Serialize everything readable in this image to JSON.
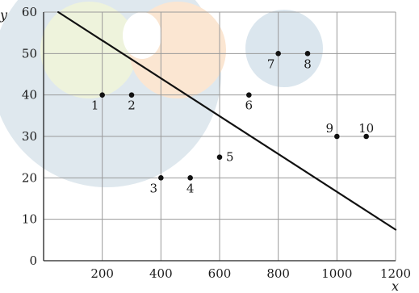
{
  "chart_data": {
    "type": "scatter",
    "title": "",
    "xlabel": "x",
    "ylabel": "y",
    "xlim": [
      0,
      1200
    ],
    "ylim": [
      0,
      60
    ],
    "xticks": [
      200,
      400,
      600,
      800,
      1000,
      1200
    ],
    "yticks": [
      0,
      10,
      20,
      30,
      40,
      50,
      60
    ],
    "grid": true,
    "points": [
      {
        "label": "1",
        "x": 200,
        "y": 40
      },
      {
        "label": "2",
        "x": 300,
        "y": 40
      },
      {
        "label": "3",
        "x": 400,
        "y": 20
      },
      {
        "label": "4",
        "x": 500,
        "y": 20
      },
      {
        "label": "5",
        "x": 600,
        "y": 25
      },
      {
        "label": "6",
        "x": 700,
        "y": 40
      },
      {
        "label": "7",
        "x": 800,
        "y": 50
      },
      {
        "label": "8",
        "x": 900,
        "y": 50
      },
      {
        "label": "9",
        "x": 1000,
        "y": 30
      },
      {
        "label": "10",
        "x": 1100,
        "y": 30
      }
    ],
    "line": {
      "x": [
        50,
        1200
      ],
      "y": [
        60,
        7.5
      ]
    },
    "line_color": "#111111",
    "point_color": "#111111",
    "grid_color": "#9a9a9a",
    "background_shapes": {
      "large_circle_color": "#dfe8ee",
      "small_circle_color": "#dbe6ee",
      "green_circle_color": "#eef3dc",
      "orange_circle_color": "#fbe6d2"
    }
  }
}
